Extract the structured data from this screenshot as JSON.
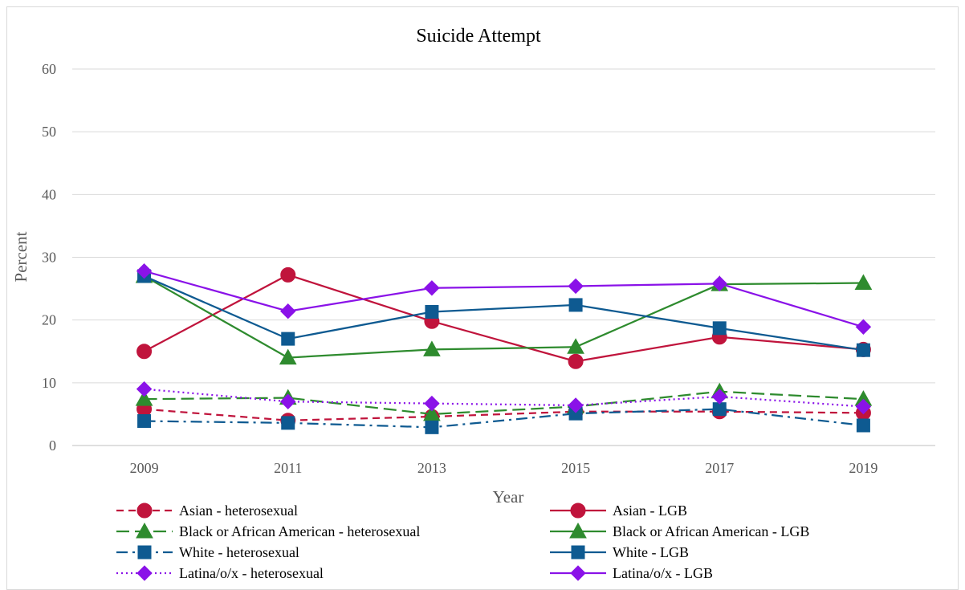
{
  "chart_data": {
    "type": "line",
    "title": "Suicide Attempt",
    "xlabel": "Year",
    "ylabel": "Percent",
    "ylim": [
      0,
      60
    ],
    "yticks": [
      0,
      10,
      20,
      30,
      40,
      50,
      60
    ],
    "categories": [
      "2009",
      "2011",
      "2013",
      "2015",
      "2017",
      "2019"
    ],
    "grid": "horizontal",
    "legend_position": "bottom",
    "series": [
      {
        "name": "Asian - heterosexual",
        "color": "#C0143C",
        "dash": "dashed",
        "marker": "circle",
        "values": [
          5.8,
          4.0,
          4.6,
          5.4,
          5.4,
          5.2
        ]
      },
      {
        "name": "Asian - LGB",
        "color": "#C0143C",
        "dash": "solid",
        "marker": "circle",
        "values": [
          15.0,
          27.2,
          19.8,
          13.4,
          17.3,
          15.3
        ]
      },
      {
        "name": "Black or African American - heterosexual",
        "color": "#2E8B2E",
        "dash": "longdash",
        "marker": "triangle",
        "values": [
          7.4,
          7.6,
          5.0,
          6.2,
          8.6,
          7.4
        ]
      },
      {
        "name": "Black or African American - LGB",
        "color": "#2E8B2E",
        "dash": "solid",
        "marker": "triangle",
        "values": [
          27.0,
          14.0,
          15.3,
          15.7,
          25.7,
          25.9
        ]
      },
      {
        "name": "White - heterosexual",
        "color": "#0E5A91",
        "dash": "dashdot",
        "marker": "square",
        "values": [
          3.9,
          3.6,
          2.9,
          5.1,
          5.8,
          3.2
        ]
      },
      {
        "name": "White - LGB",
        "color": "#0E5A91",
        "dash": "solid",
        "marker": "square",
        "values": [
          27.0,
          17.0,
          21.3,
          22.4,
          18.7,
          15.2
        ]
      },
      {
        "name": "Latina/o/x - heterosexual",
        "color": "#8A12E8",
        "dash": "dotted",
        "marker": "diamond",
        "values": [
          9.0,
          7.0,
          6.7,
          6.4,
          7.8,
          6.2
        ]
      },
      {
        "name": "Latina/o/x - LGB",
        "color": "#8A12E8",
        "dash": "solid",
        "marker": "diamond",
        "values": [
          27.8,
          21.4,
          25.1,
          25.4,
          25.8,
          18.9
        ]
      }
    ]
  }
}
